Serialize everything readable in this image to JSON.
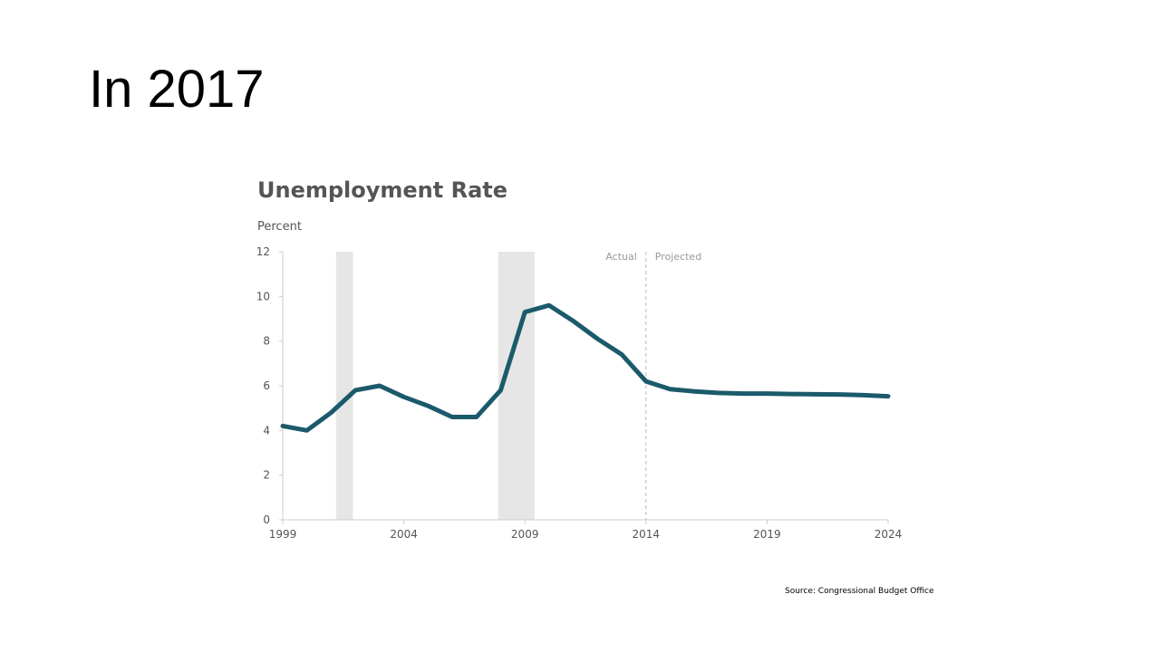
{
  "slide": {
    "title": "In 2017",
    "source": "Source: Congressional Budget Office"
  },
  "chart_data": {
    "type": "line",
    "title": "Unemployment Rate",
    "ylabel": "Percent",
    "xlabel": "",
    "xlim": [
      1999,
      2024
    ],
    "ylim": [
      0,
      12
    ],
    "x_ticks": [
      1999,
      2004,
      2009,
      2014,
      2019,
      2024
    ],
    "y_ticks": [
      0,
      2,
      4,
      6,
      8,
      10,
      12
    ],
    "grid": false,
    "line_color": "#1b5a6b",
    "shade_color": "#e6e6e6",
    "divider": {
      "x": 2014,
      "left_label": "Actual",
      "right_label": "Projected"
    },
    "shaded_periods": [
      {
        "start": 2001.2,
        "end": 2001.9
      },
      {
        "start": 2007.9,
        "end": 2009.4
      }
    ],
    "series": [
      {
        "x": [
          1999,
          2000,
          2001,
          2002,
          2003,
          2004,
          2005,
          2006,
          2007,
          2008,
          2009,
          2010,
          2011,
          2012,
          2013,
          2014,
          2015,
          2016,
          2017,
          2018,
          2019,
          2020,
          2021,
          2022,
          2023,
          2024
        ],
        "values": [
          4.2,
          4.0,
          4.8,
          5.8,
          6.0,
          5.5,
          5.1,
          4.6,
          4.6,
          5.8,
          9.3,
          9.6,
          8.9,
          8.1,
          7.4,
          6.2,
          5.85,
          5.75,
          5.68,
          5.65,
          5.65,
          5.63,
          5.62,
          5.61,
          5.58,
          5.53
        ]
      }
    ]
  }
}
